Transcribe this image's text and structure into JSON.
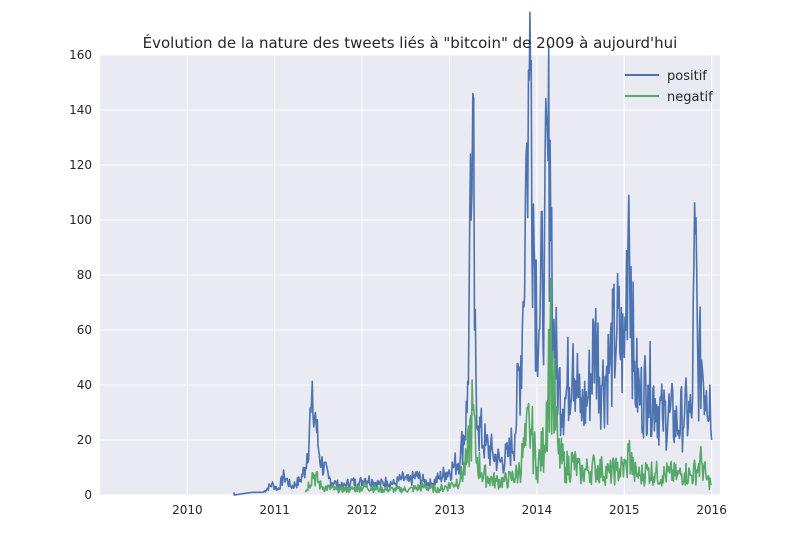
{
  "chart_data": {
    "type": "line",
    "title": "Évolution de la nature des tweets liés à \"bitcoin\" de 2009 à aujourd'hui",
    "xlabel": "",
    "ylabel": "",
    "x_ticks": [
      "2010",
      "2011",
      "2012",
      "2013",
      "2014",
      "2015",
      "2016"
    ],
    "y_ticks": [
      "0",
      "20",
      "40",
      "60",
      "80",
      "100",
      "120",
      "140",
      "160"
    ],
    "xlim": [
      "2009-01-01",
      "2016-02-05"
    ],
    "ylim": [
      0,
      160
    ],
    "grid": true,
    "legend_position": "top-right",
    "series": [
      {
        "name": "positif",
        "color": "#4c72b0",
        "points": [
          [
            "2010-07-15",
            1
          ],
          [
            "2010-07-16",
            0
          ],
          [
            "2010-10-01",
            1
          ],
          [
            "2010-11-15",
            1
          ],
          [
            "2010-12-20",
            4
          ],
          [
            "2011-01-15",
            2
          ],
          [
            "2011-02-10",
            7
          ],
          [
            "2011-03-10",
            3
          ],
          [
            "2011-04-15",
            5
          ],
          [
            "2011-05-10",
            10
          ],
          [
            "2011-06-01",
            30
          ],
          [
            "2011-06-10",
            29
          ],
          [
            "2011-06-20",
            30
          ],
          [
            "2011-07-01",
            18
          ],
          [
            "2011-07-15",
            12
          ],
          [
            "2011-08-15",
            6
          ],
          [
            "2011-09-15",
            4
          ],
          [
            "2011-10-15",
            3
          ],
          [
            "2011-11-15",
            5
          ],
          [
            "2011-12-15",
            4
          ],
          [
            "2012-01-15",
            6
          ],
          [
            "2012-02-15",
            5
          ],
          [
            "2012-03-15",
            4
          ],
          [
            "2012-04-15",
            5
          ],
          [
            "2012-05-15",
            4
          ],
          [
            "2012-06-15",
            6
          ],
          [
            "2012-07-15",
            5
          ],
          [
            "2012-08-15",
            7
          ],
          [
            "2012-09-15",
            5
          ],
          [
            "2012-10-15",
            4
          ],
          [
            "2012-11-15",
            6
          ],
          [
            "2012-12-15",
            8
          ],
          [
            "2013-01-15",
            10
          ],
          [
            "2013-02-15",
            14
          ],
          [
            "2013-03-15",
            30
          ],
          [
            "2013-04-01",
            100
          ],
          [
            "2013-04-08",
            146
          ],
          [
            "2013-04-15",
            60
          ],
          [
            "2013-05-01",
            25
          ],
          [
            "2013-06-01",
            18
          ],
          [
            "2013-07-01",
            15
          ],
          [
            "2013-08-01",
            12
          ],
          [
            "2013-09-01",
            14
          ],
          [
            "2013-10-01",
            22
          ],
          [
            "2013-11-01",
            60
          ],
          [
            "2013-11-20",
            128
          ],
          [
            "2013-11-30",
            151
          ],
          [
            "2013-12-08",
            158
          ],
          [
            "2013-12-20",
            90
          ],
          [
            "2014-01-10",
            60
          ],
          [
            "2014-02-01",
            90
          ],
          [
            "2014-02-25",
            129
          ],
          [
            "2014-03-10",
            60
          ],
          [
            "2014-04-01",
            40
          ],
          [
            "2014-05-01",
            35
          ],
          [
            "2014-06-01",
            55
          ],
          [
            "2014-07-01",
            30
          ],
          [
            "2014-08-01",
            35
          ],
          [
            "2014-09-01",
            58
          ],
          [
            "2014-10-01",
            40
          ],
          [
            "2014-11-01",
            48
          ],
          [
            "2014-12-01",
            60
          ],
          [
            "2015-01-01",
            50
          ],
          [
            "2015-01-20",
            109
          ],
          [
            "2015-02-10",
            45
          ],
          [
            "2015-03-10",
            35
          ],
          [
            "2015-04-10",
            40
          ],
          [
            "2015-05-10",
            35
          ],
          [
            "2015-06-10",
            28
          ],
          [
            "2015-07-10",
            30
          ],
          [
            "2015-08-10",
            25
          ],
          [
            "2015-09-10",
            30
          ],
          [
            "2015-10-10",
            28
          ],
          [
            "2015-10-25",
            95
          ],
          [
            "2015-11-05",
            45
          ],
          [
            "2015-11-20",
            49
          ],
          [
            "2015-12-10",
            38
          ],
          [
            "2015-12-25",
            40
          ],
          [
            "2016-01-01",
            20
          ]
        ]
      },
      {
        "name": "negatif",
        "color": "#55a868",
        "points": [
          [
            "2011-05-10",
            1
          ],
          [
            "2011-06-10",
            8
          ],
          [
            "2011-07-15",
            3
          ],
          [
            "2011-09-15",
            2
          ],
          [
            "2011-11-15",
            2
          ],
          [
            "2012-01-15",
            3
          ],
          [
            "2012-03-15",
            2
          ],
          [
            "2012-05-15",
            2
          ],
          [
            "2012-07-15",
            2
          ],
          [
            "2012-09-15",
            3
          ],
          [
            "2012-11-15",
            2
          ],
          [
            "2013-01-15",
            4
          ],
          [
            "2013-02-15",
            6
          ],
          [
            "2013-03-15",
            12
          ],
          [
            "2013-04-08",
            31
          ],
          [
            "2013-04-20",
            15
          ],
          [
            "2013-05-15",
            8
          ],
          [
            "2013-06-15",
            6
          ],
          [
            "2013-07-15",
            5
          ],
          [
            "2013-08-15",
            5
          ],
          [
            "2013-09-15",
            6
          ],
          [
            "2013-10-15",
            8
          ],
          [
            "2013-11-15",
            18
          ],
          [
            "2013-11-30",
            27
          ],
          [
            "2013-12-10",
            22
          ],
          [
            "2014-01-01",
            10
          ],
          [
            "2014-02-01",
            18
          ],
          [
            "2014-02-25",
            59
          ],
          [
            "2014-03-10",
            38
          ],
          [
            "2014-04-01",
            15
          ],
          [
            "2014-05-01",
            10
          ],
          [
            "2014-06-01",
            12
          ],
          [
            "2014-07-01",
            8
          ],
          [
            "2014-08-01",
            9
          ],
          [
            "2014-09-01",
            10
          ],
          [
            "2014-10-01",
            9
          ],
          [
            "2014-11-01",
            8
          ],
          [
            "2014-12-01",
            9
          ],
          [
            "2015-01-10",
            10
          ],
          [
            "2015-01-20",
            16
          ],
          [
            "2015-02-10",
            8
          ],
          [
            "2015-03-10",
            7
          ],
          [
            "2015-04-10",
            9
          ],
          [
            "2015-05-10",
            8
          ],
          [
            "2015-06-10",
            7
          ],
          [
            "2015-07-10",
            8
          ],
          [
            "2015-08-10",
            7
          ],
          [
            "2015-09-10",
            8
          ],
          [
            "2015-10-10",
            7
          ],
          [
            "2015-11-05",
            10
          ],
          [
            "2015-11-20",
            12
          ],
          [
            "2015-12-10",
            6
          ],
          [
            "2016-01-01",
            4
          ]
        ]
      }
    ]
  }
}
